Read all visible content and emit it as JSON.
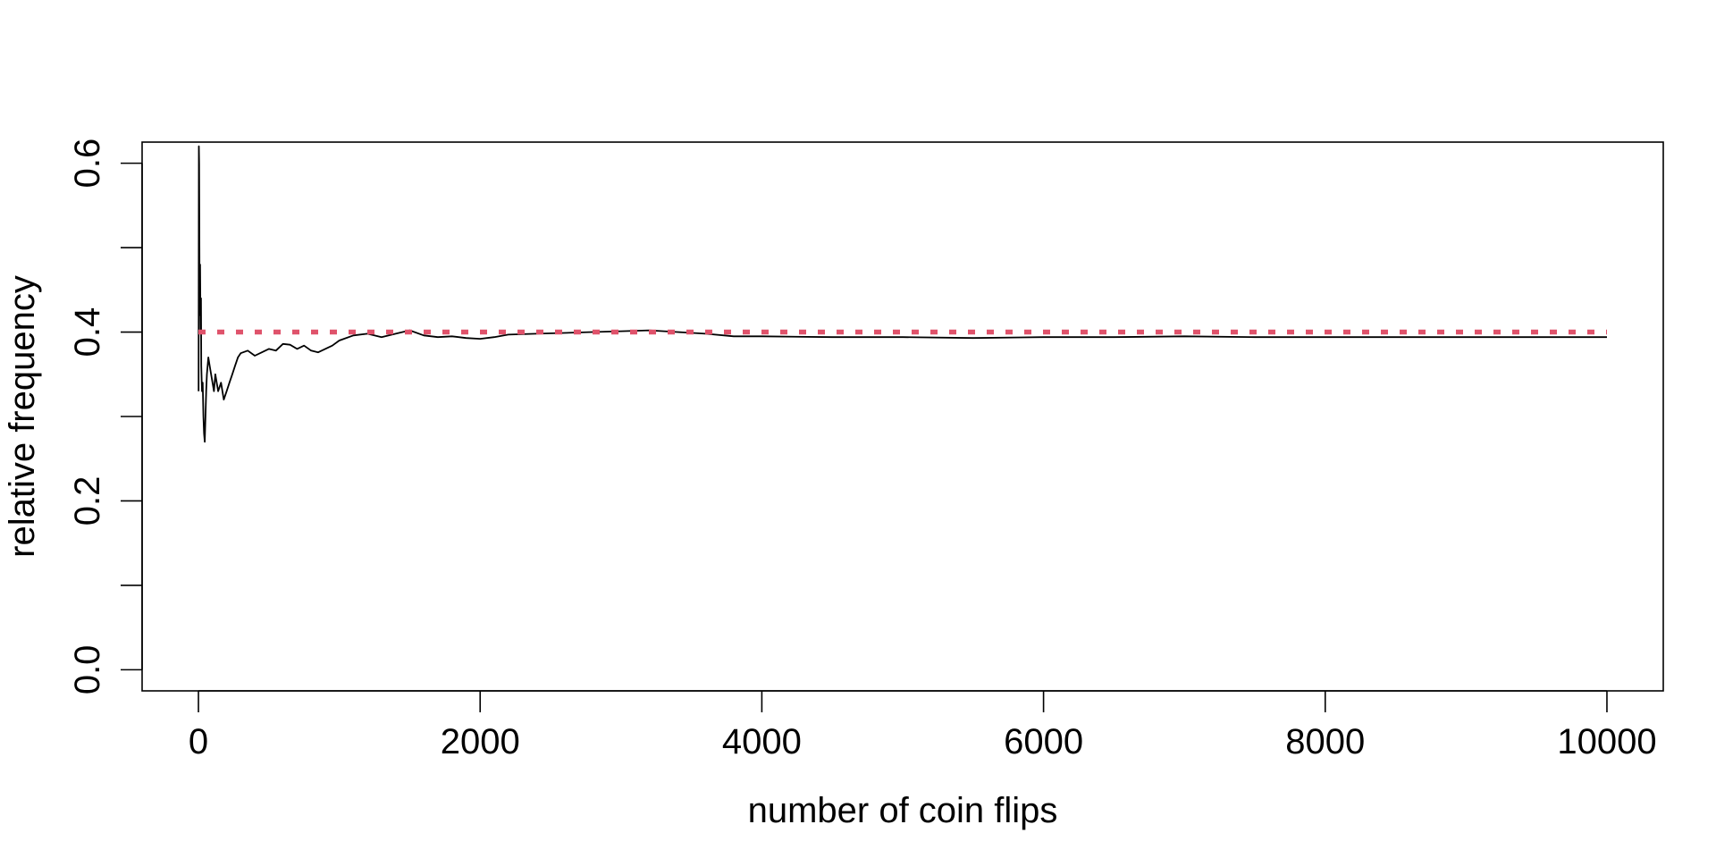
{
  "chart_data": {
    "type": "line",
    "title": "",
    "xlabel": "number of coin flips",
    "ylabel": "relative frequency",
    "xlim": [
      -400,
      10400
    ],
    "ylim": [
      -0.025,
      0.625
    ],
    "x_ticks": [
      0,
      2000,
      4000,
      6000,
      8000,
      10000
    ],
    "x_tick_labels": [
      "0",
      "2000",
      "4000",
      "6000",
      "8000",
      "10000"
    ],
    "y_ticks": [
      0.0,
      0.1,
      0.2,
      0.3,
      0.4,
      0.5,
      0.6
    ],
    "y_tick_labels": [
      "0.0",
      "",
      "0.2",
      "",
      "0.4",
      "",
      "0.6"
    ],
    "grid": false,
    "legend": "none",
    "series": [
      {
        "color": "#000000",
        "style": "solid",
        "x": [
          1,
          3,
          5,
          8,
          10,
          12,
          15,
          18,
          20,
          25,
          30,
          35,
          40,
          45,
          50,
          55,
          60,
          70,
          80,
          90,
          100,
          110,
          120,
          140,
          160,
          180,
          200,
          220,
          240,
          260,
          280,
          300,
          350,
          400,
          450,
          500,
          550,
          600,
          650,
          700,
          750,
          800,
          850,
          900,
          950,
          1000,
          1100,
          1200,
          1300,
          1400,
          1500,
          1600,
          1700,
          1800,
          1900,
          2000,
          2100,
          2200,
          2400,
          2600,
          2800,
          3000,
          3200,
          3400,
          3600,
          3800,
          4000,
          4500,
          5000,
          5500,
          6000,
          6500,
          7000,
          7500,
          8000,
          8500,
          9000,
          9500,
          10000
        ],
        "y": [
          0.33,
          0.62,
          0.6,
          0.45,
          0.42,
          0.48,
          0.4,
          0.44,
          0.36,
          0.33,
          0.34,
          0.3,
          0.28,
          0.27,
          0.3,
          0.33,
          0.35,
          0.37,
          0.36,
          0.35,
          0.34,
          0.33,
          0.35,
          0.33,
          0.34,
          0.32,
          0.33,
          0.34,
          0.35,
          0.36,
          0.37,
          0.375,
          0.378,
          0.372,
          0.376,
          0.38,
          0.378,
          0.386,
          0.385,
          0.38,
          0.384,
          0.378,
          0.376,
          0.38,
          0.384,
          0.39,
          0.396,
          0.398,
          0.394,
          0.398,
          0.402,
          0.396,
          0.394,
          0.395,
          0.393,
          0.392,
          0.394,
          0.397,
          0.398,
          0.399,
          0.4,
          0.401,
          0.402,
          0.4,
          0.398,
          0.395,
          0.395,
          0.394,
          0.394,
          0.393,
          0.394,
          0.394,
          0.395,
          0.394,
          0.394,
          0.394,
          0.394,
          0.394,
          0.394
        ]
      },
      {
        "color": "#DF536B",
        "style": "dotted",
        "x": [
          0,
          10000
        ],
        "y": [
          0.4,
          0.4
        ]
      }
    ]
  }
}
